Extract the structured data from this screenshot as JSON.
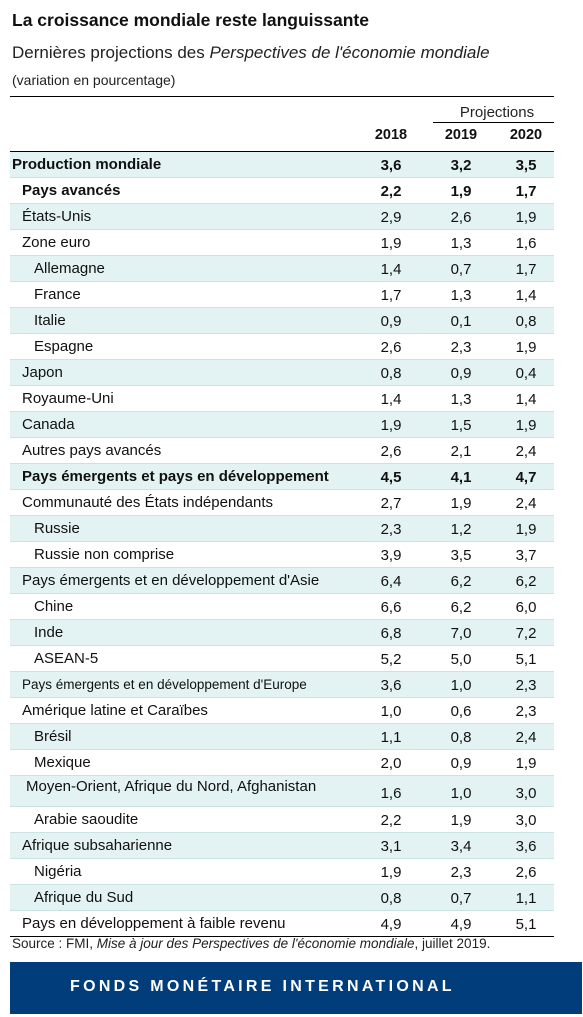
{
  "title": "La croissance mondiale reste languissante",
  "subtitle_prefix": "Dernières projections des ",
  "subtitle_italic": "Perspectives de l'économie mondiale",
  "note": "(variation en pourcentage)",
  "projections_label": "Projections",
  "years": [
    "2018",
    "2019",
    "2020"
  ],
  "rows": [
    {
      "label": "Production mondiale",
      "values": [
        "3,6",
        "3,2",
        "3,5"
      ],
      "bold": true,
      "indent": 0,
      "shade": true
    },
    {
      "label": "Pays avancés",
      "values": [
        "2,2",
        "1,9",
        "1,7"
      ],
      "bold": true,
      "indent": 1,
      "shade": false
    },
    {
      "label": "États-Unis",
      "values": [
        "2,9",
        "2,6",
        "1,9"
      ],
      "bold": false,
      "indent": 1,
      "shade": true
    },
    {
      "label": "Zone euro",
      "values": [
        "1,9",
        "1,3",
        "1,6"
      ],
      "bold": false,
      "indent": 1,
      "shade": false
    },
    {
      "label": "Allemagne",
      "values": [
        "1,4",
        "0,7",
        "1,7"
      ],
      "bold": false,
      "indent": 2,
      "shade": true
    },
    {
      "label": "France",
      "values": [
        "1,7",
        "1,3",
        "1,4"
      ],
      "bold": false,
      "indent": 2,
      "shade": false
    },
    {
      "label": "Italie",
      "values": [
        "0,9",
        "0,1",
        "0,8"
      ],
      "bold": false,
      "indent": 2,
      "shade": true
    },
    {
      "label": "Espagne",
      "values": [
        "2,6",
        "2,3",
        "1,9"
      ],
      "bold": false,
      "indent": 2,
      "shade": false
    },
    {
      "label": "Japon",
      "values": [
        "0,8",
        "0,9",
        "0,4"
      ],
      "bold": false,
      "indent": 1,
      "shade": true
    },
    {
      "label": "Royaume-Uni",
      "values": [
        "1,4",
        "1,3",
        "1,4"
      ],
      "bold": false,
      "indent": 1,
      "shade": false
    },
    {
      "label": "Canada",
      "values": [
        "1,9",
        "1,5",
        "1,9"
      ],
      "bold": false,
      "indent": 1,
      "shade": true
    },
    {
      "label": "Autres pays avancés",
      "values": [
        "2,6",
        "2,1",
        "2,4"
      ],
      "bold": false,
      "indent": 1,
      "shade": false
    },
    {
      "label": "Pays émergents et pays en développement",
      "values": [
        "4,5",
        "4,1",
        "4,7"
      ],
      "bold": true,
      "indent": 1,
      "shade": true
    },
    {
      "label": "Communauté des États indépendants",
      "values": [
        "2,7",
        "1,9",
        "2,4"
      ],
      "bold": false,
      "indent": 1,
      "shade": false
    },
    {
      "label": "Russie",
      "values": [
        "2,3",
        "1,2",
        "1,9"
      ],
      "bold": false,
      "indent": 2,
      "shade": true
    },
    {
      "label": "Russie non comprise",
      "values": [
        "3,9",
        "3,5",
        "3,7"
      ],
      "bold": false,
      "indent": 2,
      "shade": false
    },
    {
      "label": "Pays émergents et en développement d'Asie",
      "values": [
        "6,4",
        "6,2",
        "6,2"
      ],
      "bold": false,
      "indent": 1,
      "shade": true
    },
    {
      "label": "Chine",
      "values": [
        "6,6",
        "6,2",
        "6,0"
      ],
      "bold": false,
      "indent": 2,
      "shade": false
    },
    {
      "label": "Inde",
      "values": [
        "6,8",
        "7,0",
        "7,2"
      ],
      "bold": false,
      "indent": 2,
      "shade": true
    },
    {
      "label": "ASEAN-5",
      "values": [
        "5,2",
        "5,0",
        "5,1"
      ],
      "bold": false,
      "indent": 2,
      "shade": false
    },
    {
      "label": "Pays émergents et en développement d'Europe",
      "values": [
        "3,6",
        "1,0",
        "2,3"
      ],
      "bold": false,
      "indent": 1,
      "shade": true,
      "small": true
    },
    {
      "label": "Amérique latine et Caraïbes",
      "values": [
        "1,0",
        "0,6",
        "2,3"
      ],
      "bold": false,
      "indent": 1,
      "shade": false
    },
    {
      "label": "Brésil",
      "values": [
        "1,1",
        "0,8",
        "2,4"
      ],
      "bold": false,
      "indent": 2,
      "shade": true
    },
    {
      "label": "Mexique",
      "values": [
        "2,0",
        "0,9",
        "1,9"
      ],
      "bold": false,
      "indent": 2,
      "shade": false
    },
    {
      "label": "Moyen-Orient, Afrique du Nord, Afghanistan",
      "values": [
        "1,6",
        "1,0",
        "3,0"
      ],
      "bold": false,
      "indent": 1.3,
      "shade": true,
      "tall": true
    },
    {
      "label": "Arabie saoudite",
      "values": [
        "2,2",
        "1,9",
        "3,0"
      ],
      "bold": false,
      "indent": 2,
      "shade": false
    },
    {
      "label": "Afrique subsaharienne",
      "values": [
        "3,1",
        "3,4",
        "3,6"
      ],
      "bold": false,
      "indent": 1,
      "shade": true
    },
    {
      "label": "Nigéria",
      "values": [
        "1,9",
        "2,3",
        "2,6"
      ],
      "bold": false,
      "indent": 2,
      "shade": false
    },
    {
      "label": "Afrique du Sud",
      "values": [
        "0,8",
        "0,7",
        "1,1"
      ],
      "bold": false,
      "indent": 2,
      "shade": true
    },
    {
      "label": "Pays en développement à faible revenu",
      "values": [
        "4,9",
        "4,9",
        "5,1"
      ],
      "bold": false,
      "indent": 1,
      "shade": false
    }
  ],
  "source_prefix": "Source : FMI, ",
  "source_italic": "Mise à jour des Perspectives de l'économie mondiale",
  "source_suffix": ", juillet 2019.",
  "footer": "FONDS MONÉTAIRE INTERNATIONAL",
  "colors": {
    "row_shade": "#e3f2f2",
    "row_rule": "#c9e2e2",
    "footer_bg": "#003d7a"
  }
}
